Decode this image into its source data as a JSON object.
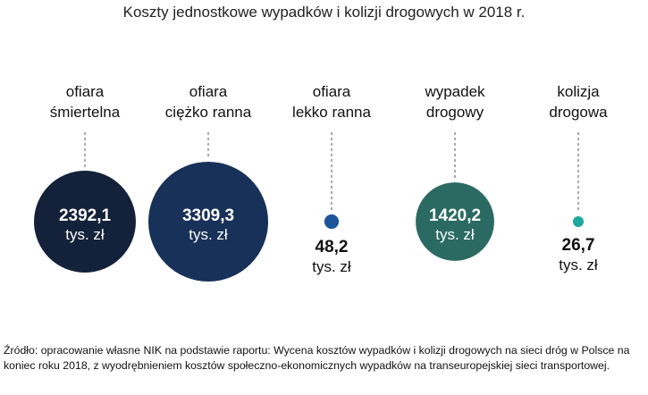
{
  "title": "Koszty jednostkowe wypadków i kolizji drogowych w 2018 r.",
  "chart_data": {
    "type": "scatter",
    "encoding": "bubble area proportional to value",
    "title": "Koszty jednostkowe wypadków i kolizji drogowych w 2018 r.",
    "unit": "tys. zł",
    "categories": [
      [
        "ofiara",
        "śmiertelna"
      ],
      [
        "ofiara",
        "ciężko ranna"
      ],
      [
        "ofiara",
        "lekko ranna"
      ],
      [
        "wypadek",
        "drogowy"
      ],
      [
        "kolizja",
        "drogowa"
      ]
    ],
    "values": [
      2392.1,
      3309.3,
      48.2,
      1420.2,
      26.7
    ],
    "value_labels": [
      "2392,1",
      "3309,3",
      "48,2",
      "1420,2",
      "26,7"
    ],
    "colors": [
      "#14213a",
      "#183158",
      "#1d559c",
      "#2a6a63",
      "#1ea89c"
    ],
    "label_inside": [
      true,
      true,
      false,
      true,
      false
    ]
  },
  "source": "Źródło: opracowanie własne NIK na podstawie raportu: Wycena kosztów wypadków i kolizji drogowych na sieci dróg w Polsce na koniec roku 2018, z wyodrębnieniem kosztów społeczno-ekonomicznych wypadków na transeuropejskiej sieci transportowej."
}
